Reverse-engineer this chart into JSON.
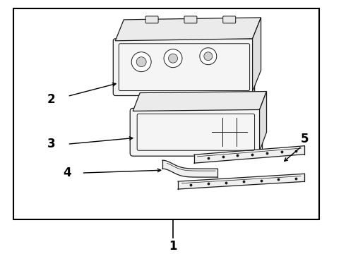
{
  "background_color": "#ffffff",
  "border_color": "#000000",
  "line_color": "#1a1a1a",
  "label_color": "#000000",
  "border_lw": 1.5
}
